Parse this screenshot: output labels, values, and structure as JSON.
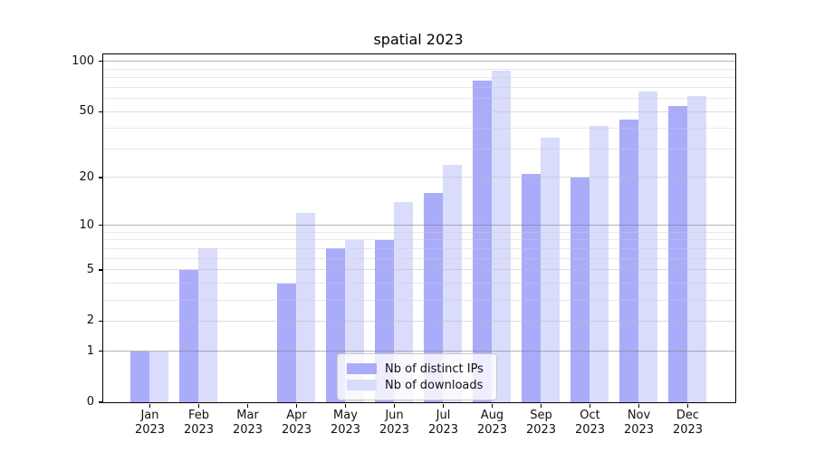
{
  "title": "spatial 2023",
  "chart_data": {
    "type": "bar",
    "title": "spatial 2023",
    "xlabel": "",
    "ylabel": "",
    "categories": [
      "Jan 2023",
      "Feb 2023",
      "Mar 2023",
      "Apr 2023",
      "May 2023",
      "Jun 2023",
      "Jul 2023",
      "Aug 2023",
      "Sep 2023",
      "Oct 2023",
      "Nov 2023",
      "Dec 2023"
    ],
    "series": [
      {
        "name": "Nb of distinct IPs",
        "color": "#aaacfa",
        "values": [
          1,
          5,
          0,
          4,
          7,
          8,
          16,
          77,
          21,
          20,
          45,
          54
        ]
      },
      {
        "name": "Nb of downloads",
        "color": "#dadcfb",
        "values": [
          1,
          7,
          0,
          12,
          8,
          14,
          24,
          88,
          35,
          41,
          66,
          62
        ]
      }
    ],
    "yscale": "log1p",
    "ylim": [
      0,
      110
    ],
    "yticks": [
      0,
      1,
      2,
      5,
      10,
      20,
      50,
      100
    ],
    "decade_ticks": [
      1,
      10,
      100
    ],
    "minor_gridlines": [
      3,
      4,
      6,
      7,
      8,
      9,
      30,
      40,
      60,
      70,
      80,
      90
    ],
    "grid": true,
    "legend_position": "lower center"
  },
  "legend": {
    "entries": [
      {
        "label": "Nb of distinct IPs",
        "color": "#aaacfa"
      },
      {
        "label": "Nb of downloads",
        "color": "#dadcfb"
      }
    ]
  }
}
